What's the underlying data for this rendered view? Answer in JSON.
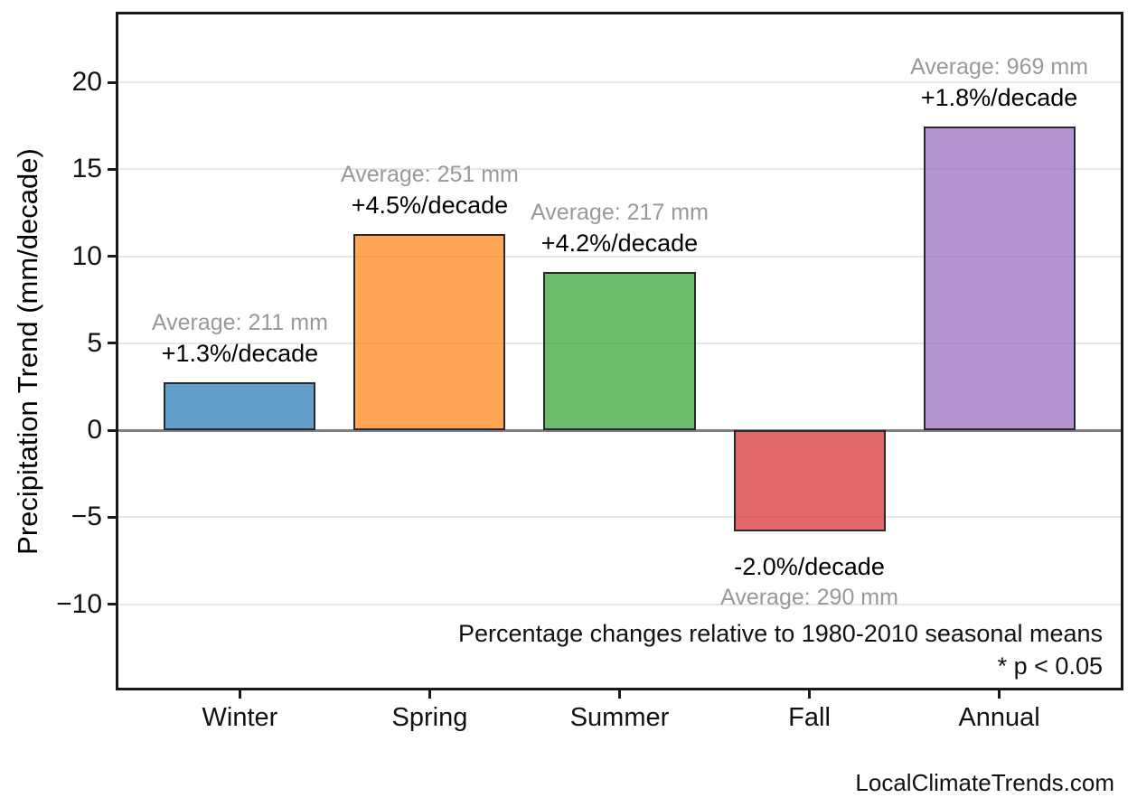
{
  "chart_data": {
    "type": "bar",
    "title": "",
    "xlabel": "",
    "ylabel": "Precipitation Trend (mm/decade)",
    "categories": [
      "Winter",
      "Spring",
      "Summer",
      "Fall",
      "Annual"
    ],
    "values": [
      2.74,
      11.3,
      9.11,
      -5.8,
      17.44
    ],
    "bars": [
      {
        "category": "Winter",
        "value": 2.74,
        "average_label": "Average: 211 mm",
        "trend_label": "+1.3%/decade",
        "color": "#1f77b4"
      },
      {
        "category": "Spring",
        "value": 11.3,
        "average_label": "Average: 251 mm",
        "trend_label": "+4.5%/decade",
        "color": "#ff7f0e"
      },
      {
        "category": "Summer",
        "value": 9.11,
        "average_label": "Average: 217 mm",
        "trend_label": "+4.2%/decade",
        "color": "#2ca02c"
      },
      {
        "category": "Fall",
        "value": -5.8,
        "average_label": "Average: 290 mm",
        "trend_label": "-2.0%/decade",
        "color": "#d62728"
      },
      {
        "category": "Annual",
        "value": 17.44,
        "average_label": "Average: 969 mm",
        "trend_label": "+1.8%/decade",
        "color": "#9467bd"
      }
    ],
    "bar_alpha": 0.7,
    "bar_width": 0.8,
    "yticks": [
      20,
      15,
      10,
      5,
      0,
      -5,
      -10
    ],
    "ytick_labels": [
      "20",
      "15",
      "10",
      "5",
      "0",
      "−5",
      "−10"
    ],
    "ylim": [
      -14.8,
      23.9
    ],
    "xlim": [
      -0.64,
      4.64
    ],
    "grid": true,
    "legend": false,
    "note_lines": [
      "Percentage changes relative to 1980-2010 seasonal means",
      "* p < 0.05"
    ],
    "watermark": "LocalClimateTrends.com"
  }
}
